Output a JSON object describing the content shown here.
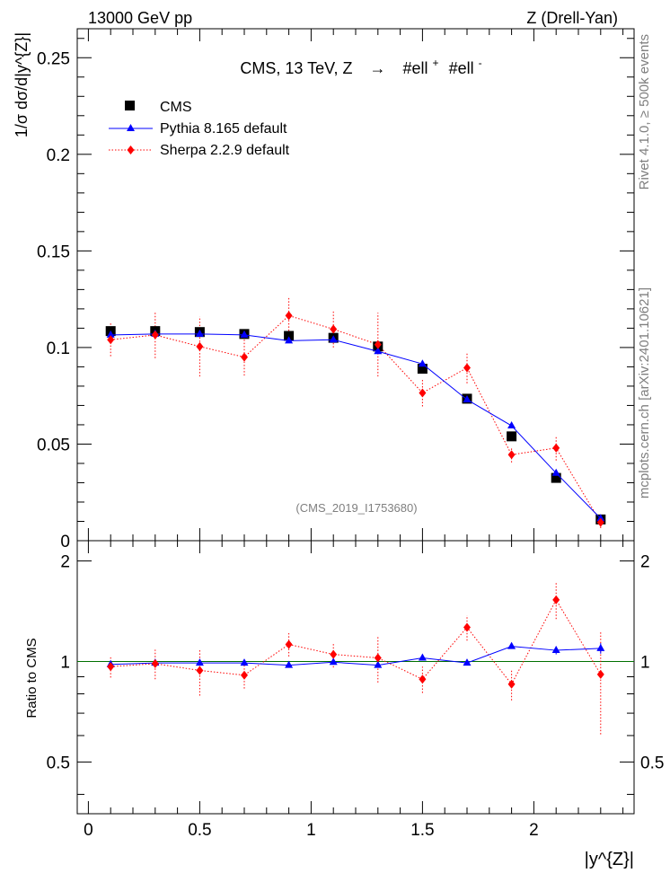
{
  "header": {
    "energy_label": "13000 GeV pp",
    "process_label": "Z (Drell-Yan)"
  },
  "side_labels": {
    "rivet": "Rivet 4.1.0, ≥ 500k events",
    "source": "mcplots.cern.ch [arXiv:2401.10621]"
  },
  "chart_data": {
    "type": "scatter",
    "title": "CMS, 13 TeV, Z  →  #ell⁺ #ell⁻",
    "title_parts": [
      "CMS, 13 TeV, Z",
      "→",
      "#ell",
      "+",
      "#ell",
      "-"
    ],
    "watermark": "(CMS_2019_I1753680)",
    "xlabel": "|y^{Z}|",
    "ylabel": "1/σ dσ/d|y^{Z}|",
    "ratio_ylabel": "Ratio to CMS",
    "xlim": [
      -0.05,
      2.45
    ],
    "ylim": [
      0,
      0.265
    ],
    "ratio_ylim": [
      0.35,
      2.3
    ],
    "x_ticks": [
      "0",
      "0.5",
      "1",
      "1.5",
      "2"
    ],
    "y_ticks": [
      "0",
      "0.05",
      "0.1",
      "0.15",
      "0.2",
      "0.25"
    ],
    "ratio_ticks": [
      "0.5",
      "1",
      "2"
    ],
    "x": [
      0.1,
      0.3,
      0.5,
      0.7,
      0.9,
      1.1,
      1.3,
      1.5,
      1.7,
      1.9,
      2.1,
      2.3
    ],
    "series": [
      {
        "name": "CMS",
        "marker": "square",
        "color": "#000000",
        "values": [
          0.1085,
          0.1085,
          0.108,
          0.107,
          0.106,
          0.105,
          0.1005,
          0.089,
          0.0735,
          0.054,
          0.0325,
          0.011
        ]
      },
      {
        "name": "Pythia 8.165 default",
        "marker": "triangle",
        "color": "#0000ff",
        "values": [
          0.1065,
          0.107,
          0.107,
          0.1065,
          0.1035,
          0.104,
          0.098,
          0.0915,
          0.073,
          0.0595,
          0.035,
          0.0115
        ],
        "errors": [
          0.0005,
          0.0005,
          0.0005,
          0.0005,
          0.0005,
          0.0005,
          0.0005,
          0.0005,
          0.0005,
          0.0005,
          0.0008,
          0.0005
        ],
        "ratio": [
          0.98,
          0.99,
          0.99,
          0.99,
          0.975,
          0.995,
          0.975,
          1.025,
          0.99,
          1.11,
          1.08,
          1.095
        ],
        "ratio_errors": [
          0.01,
          0.01,
          0.01,
          0.01,
          0.01,
          0.01,
          0.01,
          0.01,
          0.01,
          0.015,
          0.03,
          0.04
        ]
      },
      {
        "name": "Sherpa 2.2.9 default",
        "marker": "diamond",
        "color": "#ff0000",
        "values": [
          0.104,
          0.1065,
          0.1005,
          0.095,
          0.1165,
          0.1095,
          0.1015,
          0.0765,
          0.0895,
          0.0445,
          0.048,
          0.0095
        ],
        "errors": [
          0.0085,
          0.012,
          0.0155,
          0.0095,
          0.0095,
          0.0095,
          0.0165,
          0.007,
          0.008,
          0.004,
          0.0065,
          0.003
        ],
        "ratio": [
          0.965,
          0.985,
          0.94,
          0.91,
          1.125,
          1.05,
          1.025,
          0.885,
          1.265,
          0.855,
          1.53,
          0.915
        ],
        "ratio_errors": [
          0.07,
          0.1,
          0.15,
          0.08,
          0.09,
          0.09,
          0.16,
          0.08,
          0.11,
          0.09,
          0.19,
          0.31
        ]
      }
    ]
  }
}
